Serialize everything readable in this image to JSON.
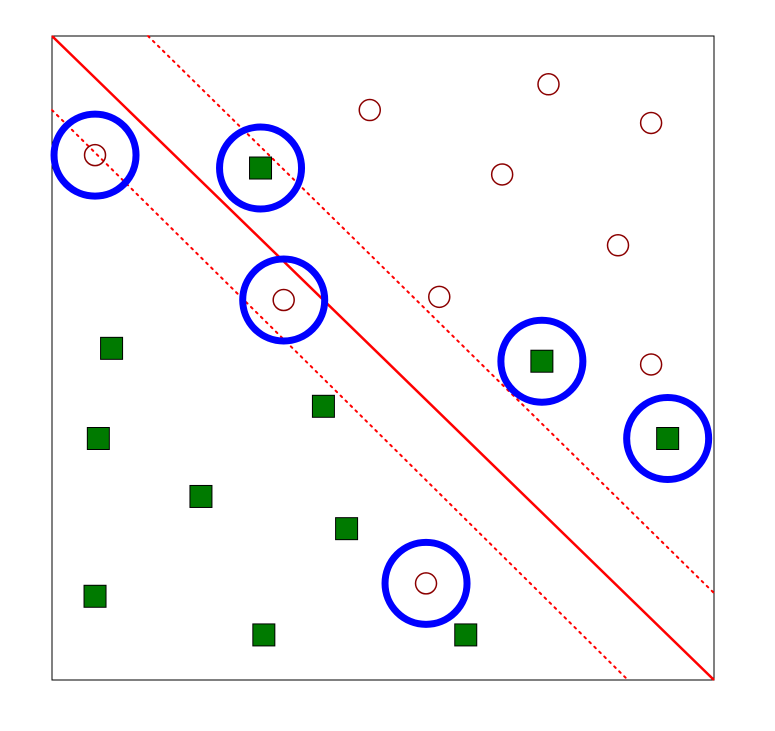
{
  "chart_data": {
    "type": "scatter",
    "title": "",
    "xlabel": "",
    "ylabel": "",
    "xlim": [
      0,
      10
    ],
    "ylim": [
      0,
      10
    ],
    "grid": false,
    "legend": "none",
    "colors": {
      "class_circle": "#8b0000",
      "class_square": "#007a00",
      "decision_line": "#ff0000",
      "highlight": "#0000ff",
      "frame": "#000000"
    },
    "series": [
      {
        "marker": "circle",
        "points": [
          {
            "x": 0.65,
            "y": 8.15
          },
          {
            "x": 4.8,
            "y": 8.85
          },
          {
            "x": 7.5,
            "y": 9.25
          },
          {
            "x": 6.8,
            "y": 7.85
          },
          {
            "x": 9.05,
            "y": 8.65
          },
          {
            "x": 8.55,
            "y": 6.75
          },
          {
            "x": 3.5,
            "y": 5.9
          },
          {
            "x": 5.85,
            "y": 5.95
          },
          {
            "x": 9.05,
            "y": 4.9
          },
          {
            "x": 5.65,
            "y": 1.5
          }
        ]
      },
      {
        "marker": "square",
        "points": [
          {
            "x": 3.15,
            "y": 7.95
          },
          {
            "x": 0.9,
            "y": 5.15
          },
          {
            "x": 7.4,
            "y": 4.95
          },
          {
            "x": 4.1,
            "y": 4.25
          },
          {
            "x": 0.7,
            "y": 3.75
          },
          {
            "x": 9.3,
            "y": 3.75
          },
          {
            "x": 2.25,
            "y": 2.85
          },
          {
            "x": 4.45,
            "y": 2.35
          },
          {
            "x": 0.65,
            "y": 1.3
          },
          {
            "x": 3.2,
            "y": 0.7
          },
          {
            "x": 6.25,
            "y": 0.7
          }
        ]
      }
    ],
    "lines": [
      {
        "style": "solid",
        "from": {
          "x": 0,
          "y": 10
        },
        "to": {
          "x": 10,
          "y": 0
        }
      },
      {
        "style": "dotted",
        "from": {
          "x": 1.45,
          "y": 10
        },
        "to": {
          "x": 10,
          "y": 1.35
        }
      },
      {
        "style": "dotted",
        "from": {
          "x": 0,
          "y": 8.85
        },
        "to": {
          "x": 8.7,
          "y": 0
        }
      }
    ],
    "highlighted": [
      {
        "x": 0.65,
        "y": 8.15
      },
      {
        "x": 3.15,
        "y": 7.95
      },
      {
        "x": 3.5,
        "y": 5.9
      },
      {
        "x": 7.4,
        "y": 4.95
      },
      {
        "x": 9.3,
        "y": 3.75
      },
      {
        "x": 5.65,
        "y": 1.5
      }
    ]
  }
}
